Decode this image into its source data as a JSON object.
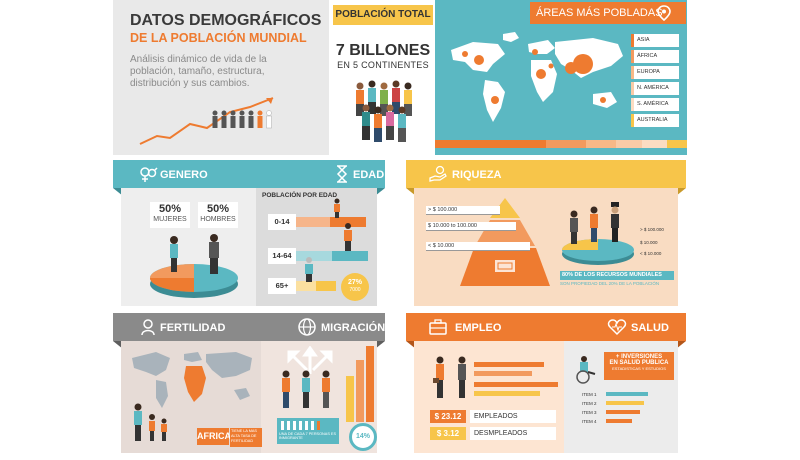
{
  "header": {
    "title_line1": "DATOS DEMOGRÁFICOS",
    "title_line2": "DE LA POBLACIÓN MUNDIAL",
    "description": "Análisis dinámico de vida de la población, tamaño, estructura, distribución y sus cambios.",
    "poblacion_total_label": "POBLACIÓN TOTAL",
    "population_value": "7 BILLONES",
    "population_sub": "EN 5 CONTINENTES"
  },
  "areas": {
    "title": "ÁREAS MÁS POBLADAS",
    "icon": "location-pin-icon",
    "legend": [
      "ASIA",
      "ÁFRICA",
      "EUROPA",
      "N. AMÉRICA",
      "S. AMÉRICA",
      "AUSTRALIA"
    ]
  },
  "genero_edad": {
    "genero_label": "GENERO",
    "edad_label": "EDAD",
    "mujeres_pct": "50%",
    "mujeres_label": "MUJERES",
    "hombres_pct": "50%",
    "hombres_label": "HOMBRES",
    "poblacion_por_edad": "POBLACIÓN POR EDAD",
    "age_groups": [
      "0-14",
      "14-64",
      "65+"
    ],
    "badge_pct": "27%",
    "badge_sub": "7000"
  },
  "riqueza": {
    "label": "RIQUEZA",
    "levels": [
      "> $ 100.000",
      "$ 10.000 to 100.000",
      "< $ 10.000"
    ],
    "right_levels": [
      "> $ 100.000",
      "$ 10.000",
      "< $ 10.000"
    ],
    "caption1": "80% DE LOS RECURSOS MUNDIALES",
    "caption2": "SON PROPIEDAD DEL 20% DE LA POBLACIÓN"
  },
  "fertilidad": {
    "label": "FERTILIDAD",
    "africa": "AFRICA",
    "africa_note": "TIENE LA MAS ALTA TASA DE FERTILIDAD"
  },
  "migracion": {
    "label": "MIGRACIÓN",
    "caption": "UNA DE CADA 7 PERSONAS ES INMIGRANTE",
    "pct": "14%"
  },
  "empleo": {
    "label": "EMPLEO",
    "empleados_value": "$ 23.12",
    "empleados_label": "EMPLEADOS",
    "desempleados_value": "$ 3.12",
    "desempleados_label": "DESMPLEADOS"
  },
  "salud": {
    "label": "SALUD",
    "title1": "+ INVERSIONES",
    "title2": "EN SALUD PUBLICA",
    "title3": "ESTADISTICAS Y ESTUDIOS",
    "items": [
      "ITEM 1",
      "ITEM 2",
      "ITEM 3",
      "ITEM 4"
    ],
    "item_values": [
      0.55,
      0.5,
      0.45,
      0.35
    ]
  },
  "colors": {
    "teal": "#5bb8c2",
    "orange": "#ee7b30",
    "yellow": "#f7c54a",
    "gray": "#8a8a8a",
    "peach": "#f9dcc2"
  }
}
